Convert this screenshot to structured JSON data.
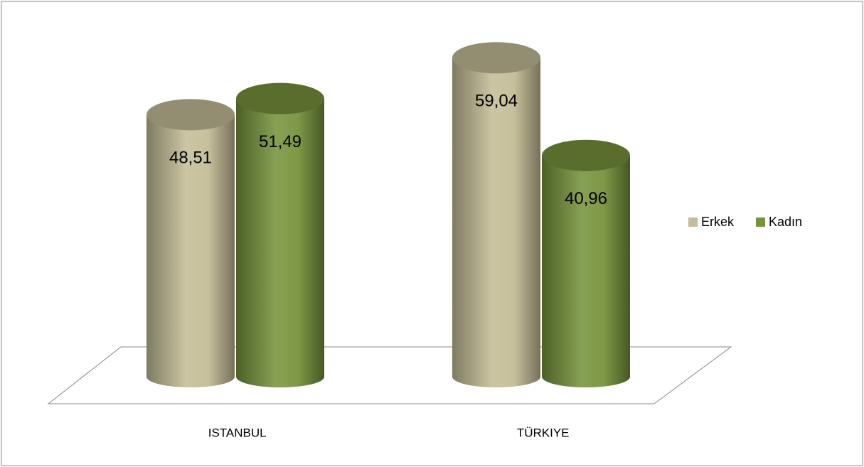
{
  "chart_data": {
    "type": "cylinder",
    "categories": [
      "ISTANBUL",
      "TÜRKIYE"
    ],
    "series": [
      {
        "name": "Erkek",
        "color": "#c4bd97",
        "values": [
          48.51,
          59.04
        ],
        "value_labels": [
          "48,51",
          "59,04"
        ]
      },
      {
        "name": "Kadın",
        "color": "#77933c",
        "values": [
          51.49,
          40.96
        ],
        "value_labels": [
          "51,49",
          "40,96"
        ]
      }
    ],
    "legend": "right"
  }
}
